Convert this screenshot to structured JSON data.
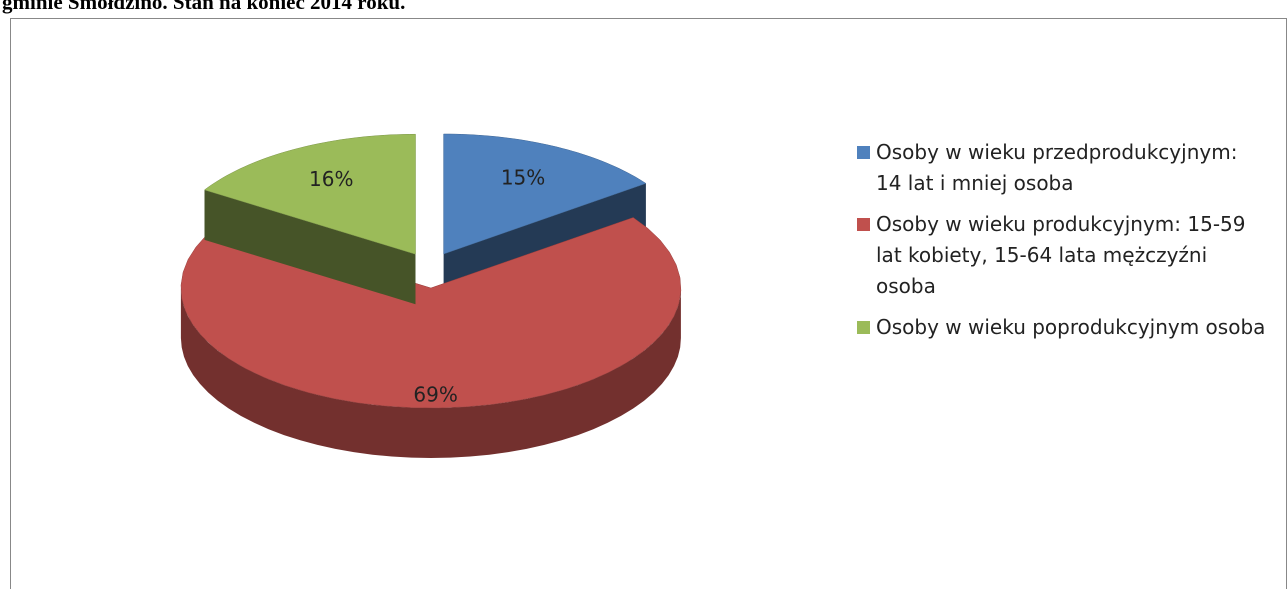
{
  "chart_data": {
    "type": "pie",
    "title": "gminie Smołdzino. Stan na koniec 2014 roku.",
    "categories": [
      "Osoby w wieku przedprodukcyjnym: 14 lat i mniej osoba",
      "Osoby w wieku produkcyjnym: 15-59 lat kobiety, 15-64 lata mężczyźni osoba",
      "Osoby w wieku poprodukcyjnym osoba"
    ],
    "values": [
      15,
      69,
      16
    ],
    "value_labels": [
      "15%",
      "69%",
      "16%"
    ],
    "colors": [
      "#4f81bd",
      "#c0504d",
      "#9bbb59"
    ]
  }
}
